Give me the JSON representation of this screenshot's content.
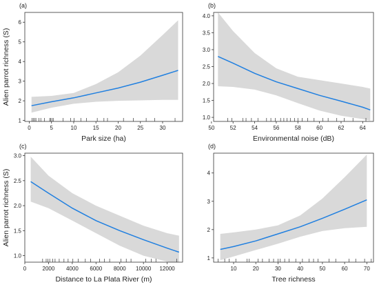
{
  "style": {
    "band_color": "#d9d9d9",
    "line_color": "#1f7fe0",
    "frame_color": "#333333"
  },
  "chart_data": [
    {
      "panel": "(a)",
      "type": "line",
      "title": "",
      "xlabel": "Park size (ha)",
      "ylabel": "Alien parrot richness (S)",
      "xlim": [
        -1,
        34.5
      ],
      "ylim": [
        0.95,
        6.5
      ],
      "xticks": [
        0,
        5,
        10,
        15,
        20,
        25,
        30
      ],
      "yticks": [
        1,
        2,
        3,
        4,
        5,
        6
      ],
      "grid": false,
      "legend": "none",
      "series": [
        {
          "x": [
            0.5,
            5,
            10,
            15,
            20,
            25,
            30,
            33.5
          ],
          "fit": [
            1.75,
            1.95,
            2.15,
            2.4,
            2.65,
            2.95,
            3.3,
            3.55
          ],
          "lower": [
            1.4,
            1.65,
            1.85,
            1.95,
            2.0,
            2.02,
            2.05,
            2.05
          ],
          "upper": [
            2.2,
            2.25,
            2.4,
            2.85,
            3.45,
            4.3,
            5.35,
            6.1
          ]
        }
      ],
      "rug": [
        0.6,
        0.9,
        1.2,
        1.5,
        2.2,
        2.6,
        3.4,
        4.6,
        4.8,
        5.1,
        5.4,
        7.6,
        9.3,
        10.1,
        11.6,
        12.9,
        15.3,
        16.8,
        17.6,
        21.2,
        23.4,
        26.3,
        28.2,
        32.8
      ]
    },
    {
      "panel": "(b)",
      "type": "line",
      "title": "",
      "xlabel": "Environmental noise (dB)",
      "ylabel": "",
      "xlim": [
        50.2,
        65
      ],
      "ylim": [
        0.88,
        4.1
      ],
      "xticks": [
        50,
        52,
        54,
        56,
        58,
        60,
        62,
        64
      ],
      "yticks": [
        1.0,
        1.5,
        2.0,
        2.5,
        3.0,
        3.5,
        4.0
      ],
      "grid": false,
      "legend": "none",
      "series": [
        {
          "x": [
            50.6,
            52,
            54,
            56,
            58,
            60,
            62,
            64,
            64.7
          ],
          "fit": [
            2.8,
            2.6,
            2.3,
            2.05,
            1.85,
            1.65,
            1.48,
            1.3,
            1.22
          ],
          "lower": [
            1.92,
            1.9,
            1.82,
            1.65,
            1.42,
            1.2,
            1.05,
            0.95,
            0.9
          ],
          "upper": [
            4.1,
            3.55,
            2.9,
            2.45,
            2.2,
            2.1,
            2.0,
            1.9,
            1.85
          ]
        }
      ],
      "rug": [
        51.5,
        51.9,
        52.9,
        53.2,
        53.7,
        54.3,
        55.1,
        55.5,
        55.9,
        56.4,
        56.7,
        57.0,
        57.3,
        57.7,
        58.0,
        58.4,
        58.9,
        59.5,
        60.3,
        60.8,
        61.6,
        62.3,
        63.1,
        64.3
      ]
    },
    {
      "panel": "(c)",
      "type": "line",
      "title": "",
      "xlabel": "Distance to La Plata River (m)",
      "ylabel": "Alien parrot richness (S)",
      "xlim": [
        0,
        13300
      ],
      "ylim": [
        0.87,
        3.05
      ],
      "xticks": [
        0,
        2000,
        4000,
        6000,
        8000,
        10000,
        12000
      ],
      "yticks": [
        1.0,
        1.5,
        2.0,
        2.5,
        3.0
      ],
      "grid": false,
      "legend": "none",
      "series": [
        {
          "x": [
            500,
            2000,
            4000,
            6000,
            8000,
            10000,
            12000,
            13000
          ],
          "fit": [
            2.48,
            2.25,
            1.95,
            1.7,
            1.5,
            1.32,
            1.15,
            1.07
          ],
          "lower": [
            2.08,
            1.95,
            1.7,
            1.45,
            1.2,
            1.0,
            0.88,
            0.85
          ],
          "upper": [
            2.98,
            2.6,
            2.25,
            2.0,
            1.8,
            1.6,
            1.45,
            1.4
          ]
        }
      ],
      "rug": [
        1500,
        1800,
        1950,
        2100,
        2350,
        2550,
        2900,
        3300,
        3650,
        4050,
        4500,
        5100,
        5550,
        6300,
        6700,
        7150,
        8100,
        8550,
        8950,
        10200,
        10650,
        11050,
        12800
      ]
    },
    {
      "panel": "(d)",
      "type": "line",
      "title": "",
      "xlabel": "Tree richness",
      "ylabel": "",
      "xlim": [
        1,
        73
      ],
      "ylim": [
        0.85,
        4.7
      ],
      "xticks": [
        10,
        20,
        30,
        40,
        50,
        60,
        70
      ],
      "yticks": [
        1,
        2,
        3,
        4
      ],
      "grid": false,
      "legend": "none",
      "series": [
        {
          "x": [
            4,
            10,
            20,
            30,
            40,
            50,
            60,
            70
          ],
          "fit": [
            1.3,
            1.4,
            1.6,
            1.85,
            2.1,
            2.4,
            2.72,
            3.05
          ],
          "lower": [
            0.92,
            1.05,
            1.28,
            1.5,
            1.75,
            1.95,
            2.05,
            2.1
          ],
          "upper": [
            1.85,
            1.9,
            2.0,
            2.15,
            2.5,
            3.1,
            3.85,
            4.65
          ]
        }
      ],
      "rug": [
        3,
        6,
        8,
        11,
        16,
        17,
        21,
        23,
        26,
        28,
        30,
        31,
        33,
        35,
        38,
        41,
        44,
        46,
        48,
        53,
        56,
        62,
        65,
        69,
        72
      ]
    }
  ]
}
